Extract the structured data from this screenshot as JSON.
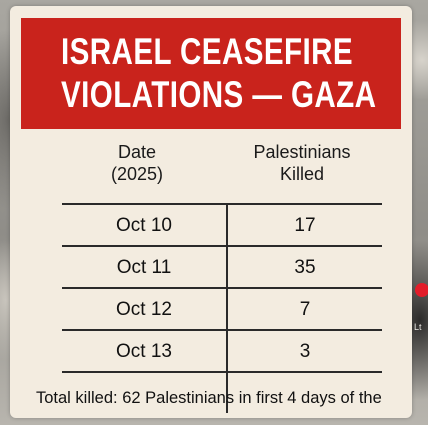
{
  "banner": {
    "line1": "ISRAEL CEASEFIRE",
    "line2": "VIOLATIONS — GAZA",
    "color": "#c9231c"
  },
  "table": {
    "headers": {
      "date_line1": "Date",
      "date_line2": "(2025)",
      "killed_line1": "Palestinians",
      "killed_line2": "Killed"
    },
    "rows": [
      {
        "date": "Oct 10",
        "killed": "17"
      },
      {
        "date": "Oct 11",
        "killed": "35"
      },
      {
        "date": "Oct 12",
        "killed": "7"
      },
      {
        "date": "Oct 13",
        "killed": "3"
      }
    ]
  },
  "footer": {
    "text": "Total killed: 62 Palestinians in first 4 days of the"
  },
  "side": {
    "partial_text": "Lt"
  }
}
